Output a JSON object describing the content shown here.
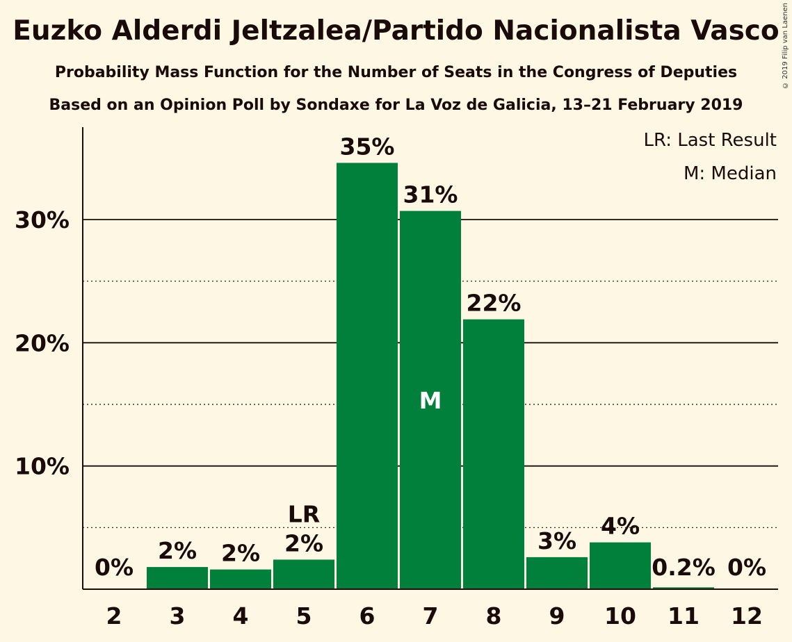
{
  "chart_data": {
    "type": "bar",
    "title": "Euzko Alderdi Jeltzalea/Partido Nacionalista Vasco",
    "subtitle": "Probability Mass Function for the Number of Seats in the Congress of Deputies",
    "subtitle2": "Based on an Opinion Poll by Sondaxe for La Voz de Galicia, 13–21 February 2019",
    "copyright": "© 2019 Filip van Laenen",
    "categories": [
      "2",
      "3",
      "4",
      "5",
      "6",
      "7",
      "8",
      "9",
      "10",
      "11",
      "12"
    ],
    "values": [
      0,
      1.8,
      1.6,
      2.4,
      34.6,
      30.7,
      21.9,
      2.6,
      3.8,
      0.15,
      0
    ],
    "value_labels": [
      "0%",
      "2%",
      "2%",
      "2%",
      "35%",
      "31%",
      "22%",
      "3%",
      "4%",
      "0.2%",
      "0%"
    ],
    "ylim": [
      0,
      37.5
    ],
    "y_ticks": [
      10,
      20,
      30
    ],
    "y_tick_labels": [
      "10%",
      "20%",
      "30%"
    ],
    "y_minor_ticks": [
      5,
      15,
      25
    ],
    "last_result_category": "5",
    "median_category": "7",
    "last_result_marker": "LR",
    "median_marker": "M",
    "legend": [
      "LR: Last Result",
      "M: Median"
    ],
    "legend_position": "top-right",
    "bar_color": "#00803a",
    "grid": true
  }
}
